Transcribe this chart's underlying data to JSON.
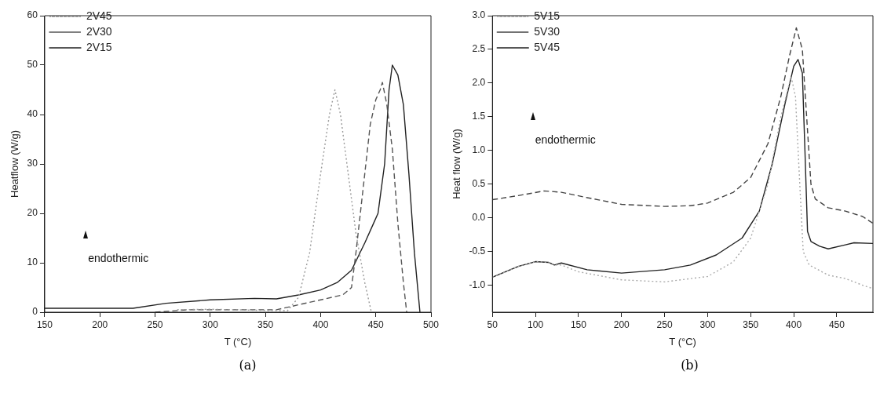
{
  "chart_data": [
    {
      "type": "line",
      "xlabel": "T (°C)",
      "ylabel": "Heatflow (W/g)",
      "annotations": [
        "endothermic",
        "(a)"
      ],
      "xlim": [
        150,
        500
      ],
      "xticks": [
        150,
        200,
        250,
        300,
        350,
        400,
        450,
        500
      ],
      "ylim": [
        0,
        60
      ],
      "yticks": [
        0,
        10,
        20,
        30,
        40,
        50,
        60
      ],
      "grid": false,
      "legend": "top left",
      "marker": "none",
      "series": [
        {
          "name": "2V45",
          "color": "#9a9a9a",
          "line_style": "dotted",
          "x": [
            270,
            300,
            340,
            370,
            380,
            390,
            400,
            408,
            413,
            418,
            425,
            432,
            440,
            446
          ],
          "values": [
            0.5,
            0.6,
            0.4,
            0.3,
            3,
            12,
            28,
            40,
            45,
            40,
            28,
            16,
            6,
            0
          ]
        },
        {
          "name": "2V30",
          "color": "#555555",
          "line_style": "dashed",
          "x": [
            250,
            280,
            340,
            360,
            380,
            400,
            420,
            428,
            432,
            440,
            445,
            450,
            454,
            456,
            460,
            465,
            470,
            475,
            478
          ],
          "values": [
            0,
            0.5,
            0.5,
            0.5,
            1.5,
            2.5,
            3.5,
            5,
            12,
            28,
            38,
            43,
            45,
            46.5,
            42,
            33,
            18,
            6,
            0
          ]
        },
        {
          "name": "2V15",
          "color": "#222222",
          "line_style": "solid",
          "x": [
            150,
            230,
            260,
            300,
            340,
            360,
            380,
            400,
            415,
            428,
            440,
            448,
            452,
            458,
            462,
            465,
            470,
            475,
            480,
            485,
            490
          ],
          "values": [
            0.8,
            0.8,
            1.8,
            2.5,
            2.8,
            2.7,
            3.5,
            4.5,
            6,
            8.5,
            14,
            18,
            20,
            30,
            45,
            50,
            48,
            42,
            28,
            12,
            0
          ]
        }
      ]
    },
    {
      "type": "line",
      "xlabel": "T (°C)",
      "ylabel": "Heat flow (W/g)",
      "annotations": [
        "endothermic",
        "(b)"
      ],
      "xlim": [
        50,
        492
      ],
      "xticks": [
        50,
        100,
        150,
        200,
        250,
        300,
        350,
        400,
        450
      ],
      "ylim": [
        -1.4,
        3.0
      ],
      "yticks": [
        {
          "value": -1.0,
          "label": "-1.0"
        },
        {
          "value": -0.5,
          "label": "-0.5"
        },
        {
          "value": 0,
          "label": "0.0"
        },
        {
          "value": 0.5,
          "label": "0.5"
        },
        {
          "value": 1.0,
          "label": "1.0"
        },
        {
          "value": 1.5,
          "label": "1.5"
        },
        {
          "value": 2.0,
          "label": "2.0"
        },
        {
          "value": 2.5,
          "label": "2.5"
        },
        {
          "value": 3.0,
          "label": "3.0"
        }
      ],
      "grid": false,
      "legend": "top left",
      "marker": "none",
      "series": [
        {
          "name": "5V15",
          "color": "#aaaaaa",
          "line_style": "dotted",
          "x": [
            50,
            80,
            100,
            115,
            122,
            130,
            150,
            200,
            250,
            300,
            330,
            350,
            370,
            385,
            397,
            402,
            407,
            411,
            418,
            440,
            460,
            480,
            492
          ],
          "values": [
            -0.88,
            -0.72,
            -0.65,
            -0.66,
            -0.7,
            -0.7,
            -0.8,
            -0.92,
            -0.95,
            -0.87,
            -0.65,
            -0.3,
            0.5,
            1.5,
            2.1,
            1.8,
            0.5,
            -0.5,
            -0.7,
            -0.85,
            -0.9,
            -1.0,
            -1.05
          ]
        },
        {
          "name": "5V30",
          "color": "#444444",
          "line_style": "dashed",
          "x": [
            50,
            80,
            110,
            130,
            160,
            200,
            250,
            280,
            300,
            330,
            350,
            370,
            385,
            395,
            403,
            410,
            415,
            420,
            425,
            440,
            460,
            480,
            492
          ],
          "values": [
            0.27,
            0.33,
            0.4,
            0.38,
            0.3,
            0.2,
            0.17,
            0.18,
            0.22,
            0.38,
            0.6,
            1.1,
            1.8,
            2.4,
            2.82,
            2.5,
            1.5,
            0.5,
            0.28,
            0.15,
            0.1,
            0.02,
            -0.08
          ]
        },
        {
          "name": "5V45",
          "color": "#222222",
          "line_style": "solid",
          "x": [
            50,
            80,
            100,
            115,
            122,
            130,
            160,
            200,
            250,
            280,
            310,
            340,
            360,
            375,
            390,
            400,
            405,
            410,
            413,
            416,
            420,
            430,
            440,
            460,
            470,
            492
          ],
          "values": [
            -0.88,
            -0.72,
            -0.65,
            -0.66,
            -0.7,
            -0.67,
            -0.77,
            -0.82,
            -0.77,
            -0.7,
            -0.55,
            -0.3,
            0.1,
            0.8,
            1.7,
            2.25,
            2.35,
            2.15,
            1.0,
            -0.2,
            -0.35,
            -0.42,
            -0.46,
            -0.4,
            -0.37,
            -0.38
          ]
        }
      ]
    }
  ]
}
